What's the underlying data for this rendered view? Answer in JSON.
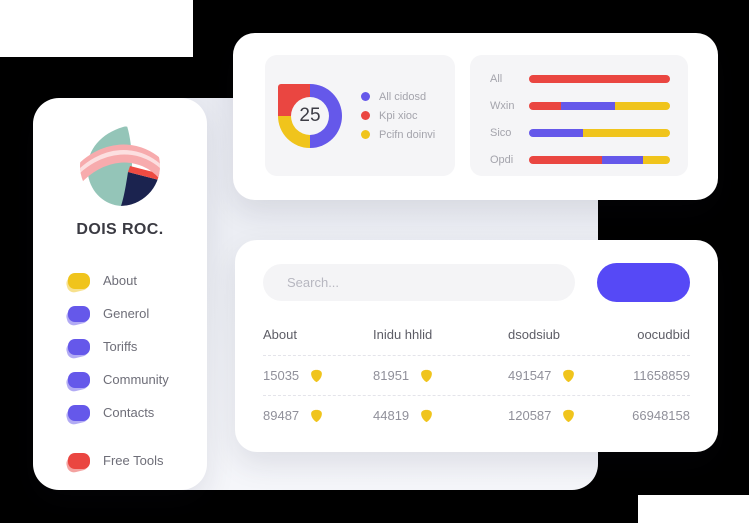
{
  "colors": {
    "page_bg": "#000000",
    "card_bg": "#ffffff",
    "panel_bg": "#f5f5f7",
    "accent": "#5649f6",
    "red": "#ea4641",
    "purple": "#6558ea",
    "yellow": "#f0c41c",
    "text_dark": "#3a3a42",
    "text_gray": "#6e6e78",
    "text_light": "#a4a4ac"
  },
  "sidebar": {
    "brand": "DOIS ROC.",
    "logo_icon": "abstract-circle-logo",
    "items": [
      {
        "label": "About",
        "color": "yellow",
        "gap_before": false
      },
      {
        "label": "Generol",
        "color": "purple",
        "gap_before": false
      },
      {
        "label": "Toriffs",
        "color": "purple",
        "gap_before": false
      },
      {
        "label": "Community",
        "color": "purple",
        "gap_before": false
      },
      {
        "label": "Contacts",
        "color": "purple",
        "gap_before": false
      },
      {
        "label": "Free Tools",
        "color": "red",
        "gap_before": true
      }
    ]
  },
  "table_card": {
    "search_placeholder": "Search...",
    "headers": [
      "About",
      "Inidu hhlid",
      "dsodsiub",
      "oocudbid"
    ],
    "rows": [
      {
        "cells": [
          {
            "value": "15035",
            "icon": true
          },
          {
            "value": "81951",
            "icon": true
          },
          {
            "value": "491547",
            "icon": true
          },
          {
            "value": "11658859",
            "icon": false
          }
        ]
      },
      {
        "cells": [
          {
            "value": "89487",
            "icon": true
          },
          {
            "value": "44819",
            "icon": true
          },
          {
            "value": "120587",
            "icon": true
          },
          {
            "value": "66948158",
            "icon": false
          }
        ]
      }
    ]
  },
  "chart_data": [
    {
      "type": "pie",
      "subtype": "donut",
      "center_label": "25",
      "slices": [
        {
          "label": "All cidosd",
          "value": 50,
          "color": "#6558ea"
        },
        {
          "label": "Kpi xioc",
          "value": 25,
          "color": "#ea4641"
        },
        {
          "label": "Pcifn doinvi",
          "value": 25,
          "color": "#f0c41c"
        }
      ],
      "arc_order": [
        0,
        2,
        1
      ],
      "legend_position": "right"
    },
    {
      "type": "bar",
      "subtype": "horizontal-stacked",
      "categories": [
        "All",
        "Wxin",
        "Sico",
        "Opdi"
      ],
      "series": [
        {
          "name": "Kpi xioc",
          "color": "#ea4641",
          "values": [
            100,
            23,
            0,
            52
          ]
        },
        {
          "name": "All cidosd",
          "color": "#6558ea",
          "values": [
            0,
            38,
            38,
            29
          ]
        },
        {
          "name": "Pcifn doinvi",
          "color": "#f0c41c",
          "values": [
            0,
            39,
            62,
            19
          ]
        }
      ],
      "unit": "percent",
      "xlim": [
        0,
        100
      ],
      "grid": false,
      "legend_position": "none"
    }
  ]
}
